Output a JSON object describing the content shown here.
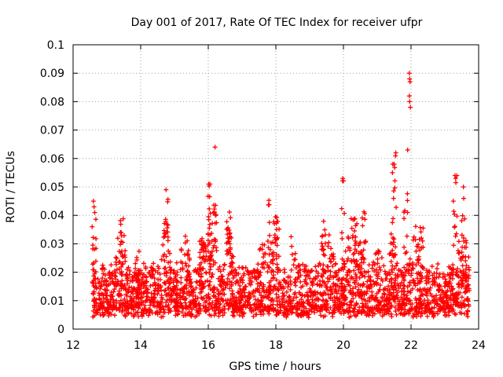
{
  "chart_data": {
    "type": "scatter",
    "title": "Day 001 of 2017, Rate Of TEC Index for receiver ufpr",
    "xlabel": "GPS time / hours",
    "ylabel": "ROTI / TECUs",
    "xlim": [
      12,
      24
    ],
    "ylim": [
      0,
      0.1
    ],
    "xticks": [
      "12",
      "14",
      "16",
      "18",
      "20",
      "22",
      "24"
    ],
    "yticks": [
      "0",
      "0.01",
      "0.02",
      "0.03",
      "0.04",
      "0.05",
      "0.06",
      "0.07",
      "0.08",
      "0.09",
      "0.1"
    ],
    "grid": true,
    "marker": "+",
    "series": [
      {
        "name": "ROTI",
        "color": "#ff0000",
        "note": "Dense scatter of ~3000 samples from 12.6 h to 23.7 h; typical values 0.005-0.035 TECU with spikes up to 0.090 near 21.95 h",
        "outliers": [
          {
            "x": 12.6,
            "y": 0.045
          },
          {
            "x": 12.62,
            "y": 0.043
          },
          {
            "x": 12.64,
            "y": 0.041
          },
          {
            "x": 14.75,
            "y": 0.049
          },
          {
            "x": 16.2,
            "y": 0.064
          },
          {
            "x": 16.05,
            "y": 0.051
          },
          {
            "x": 19.98,
            "y": 0.053
          },
          {
            "x": 21.55,
            "y": 0.062
          },
          {
            "x": 21.5,
            "y": 0.058
          },
          {
            "x": 21.45,
            "y": 0.055
          },
          {
            "x": 21.9,
            "y": 0.063
          },
          {
            "x": 21.95,
            "y": 0.09
          },
          {
            "x": 21.96,
            "y": 0.088
          },
          {
            "x": 21.97,
            "y": 0.087
          },
          {
            "x": 21.95,
            "y": 0.082
          },
          {
            "x": 21.96,
            "y": 0.08
          },
          {
            "x": 21.98,
            "y": 0.078
          },
          {
            "x": 23.3,
            "y": 0.054
          },
          {
            "x": 23.32,
            "y": 0.053
          },
          {
            "x": 23.55,
            "y": 0.05
          },
          {
            "x": 23.25,
            "y": 0.045
          }
        ]
      }
    ]
  }
}
